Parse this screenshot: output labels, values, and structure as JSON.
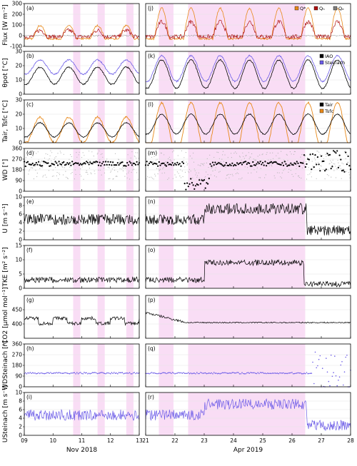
{
  "colors": {
    "shade": "#f9ddf5",
    "black": "#000000",
    "orange": "#e8891a",
    "red": "#b01010",
    "grey": "#7f7f7f",
    "blue": "#6c5ce7",
    "scatter_grey": "#b8b8b8"
  },
  "xaxes": {
    "left": {
      "caption": "Nov 2018",
      "ticks": [
        "09",
        "10",
        "11",
        "12",
        "13"
      ]
    },
    "right": {
      "caption": "Apr 2019",
      "ticks": [
        "21",
        "22",
        "23",
        "24",
        "25",
        "26",
        "27",
        "28"
      ]
    }
  },
  "chart_data": [
    {
      "id": "flux",
      "type": "line",
      "ylabel": "Flux [W m⁻²]",
      "panels": [
        "(a)",
        "(j)"
      ],
      "ylim": [
        -100,
        300
      ],
      "yticks": [
        "-100",
        "0",
        "100",
        "200",
        "300"
      ],
      "legend": [
        "Q*",
        "Qₕ",
        "Qₑ"
      ],
      "legend_colors": [
        "orange",
        "red",
        "grey"
      ],
      "series": [
        {
          "name": "Q*",
          "color": "orange"
        },
        {
          "name": "Qₕ",
          "color": "red"
        },
        {
          "name": "Qₑ",
          "color": "grey"
        }
      ]
    },
    {
      "id": "theta",
      "type": "line",
      "ylabel": "θpot [°C]",
      "panels": [
        "(b)",
        "(k)"
      ],
      "ylim": [
        0,
        30
      ],
      "yticks": [
        "0",
        "10",
        "20",
        "30"
      ],
      "legend": [
        "IAO",
        "Steinach"
      ],
      "legend_colors": [
        "black",
        "blue"
      ],
      "series": [
        {
          "name": "IAO",
          "color": "black"
        },
        {
          "name": "Steinach",
          "color": "blue"
        }
      ]
    },
    {
      "id": "temp",
      "type": "line",
      "ylabel": "Tair, Tsfc [°C]",
      "panels": [
        "(c)",
        "(l)"
      ],
      "ylim": [
        0,
        30
      ],
      "yticks": [
        "0",
        "10",
        "20",
        "30"
      ],
      "legend": [
        "Tair",
        "Tsfc"
      ],
      "legend_colors": [
        "black",
        "orange"
      ],
      "series": [
        {
          "name": "Tair",
          "color": "black"
        },
        {
          "name": "Tsfc",
          "color": "orange"
        }
      ]
    },
    {
      "id": "wd",
      "type": "scatter",
      "ylabel": "WD [°]",
      "panels": [
        "(d)",
        "(m)"
      ],
      "ylim": [
        0,
        360
      ],
      "yticks": [
        "0",
        "90",
        "180",
        "270",
        "360"
      ]
    },
    {
      "id": "u",
      "type": "line",
      "ylabel": "U [m s⁻¹]",
      "panels": [
        "(e)",
        "(n)"
      ],
      "ylim": [
        0,
        10
      ],
      "yticks": [
        "0",
        "2",
        "4",
        "6",
        "8",
        "10"
      ]
    },
    {
      "id": "tke",
      "type": "line",
      "ylabel": "TKE [m² s⁻²]",
      "panels": [
        "(f)",
        "(o)"
      ],
      "ylim": [
        0,
        15
      ],
      "yticks": [
        "0",
        "5",
        "10",
        "15"
      ]
    },
    {
      "id": "co2",
      "type": "line",
      "ylabel": "rCO2 [µmol mol⁻¹]",
      "panels": [
        "(g)",
        "(p)"
      ],
      "ylim": [
        350,
        500
      ],
      "yticks": [
        "400",
        "450"
      ]
    },
    {
      "id": "wds",
      "type": "scatter",
      "ylabel": "WDSteinach [°]",
      "panels": [
        "(h)",
        "(q)"
      ],
      "ylim": [
        0,
        360
      ],
      "yticks": [
        "0",
        "90",
        "180",
        "270",
        "360"
      ]
    },
    {
      "id": "us",
      "type": "line",
      "ylabel": "USteinach [m s⁻¹]",
      "panels": [
        "(i)",
        "(r)"
      ],
      "ylim": [
        0,
        10
      ],
      "yticks": [
        "0",
        "2",
        "4",
        "6",
        "8",
        "10"
      ]
    }
  ]
}
